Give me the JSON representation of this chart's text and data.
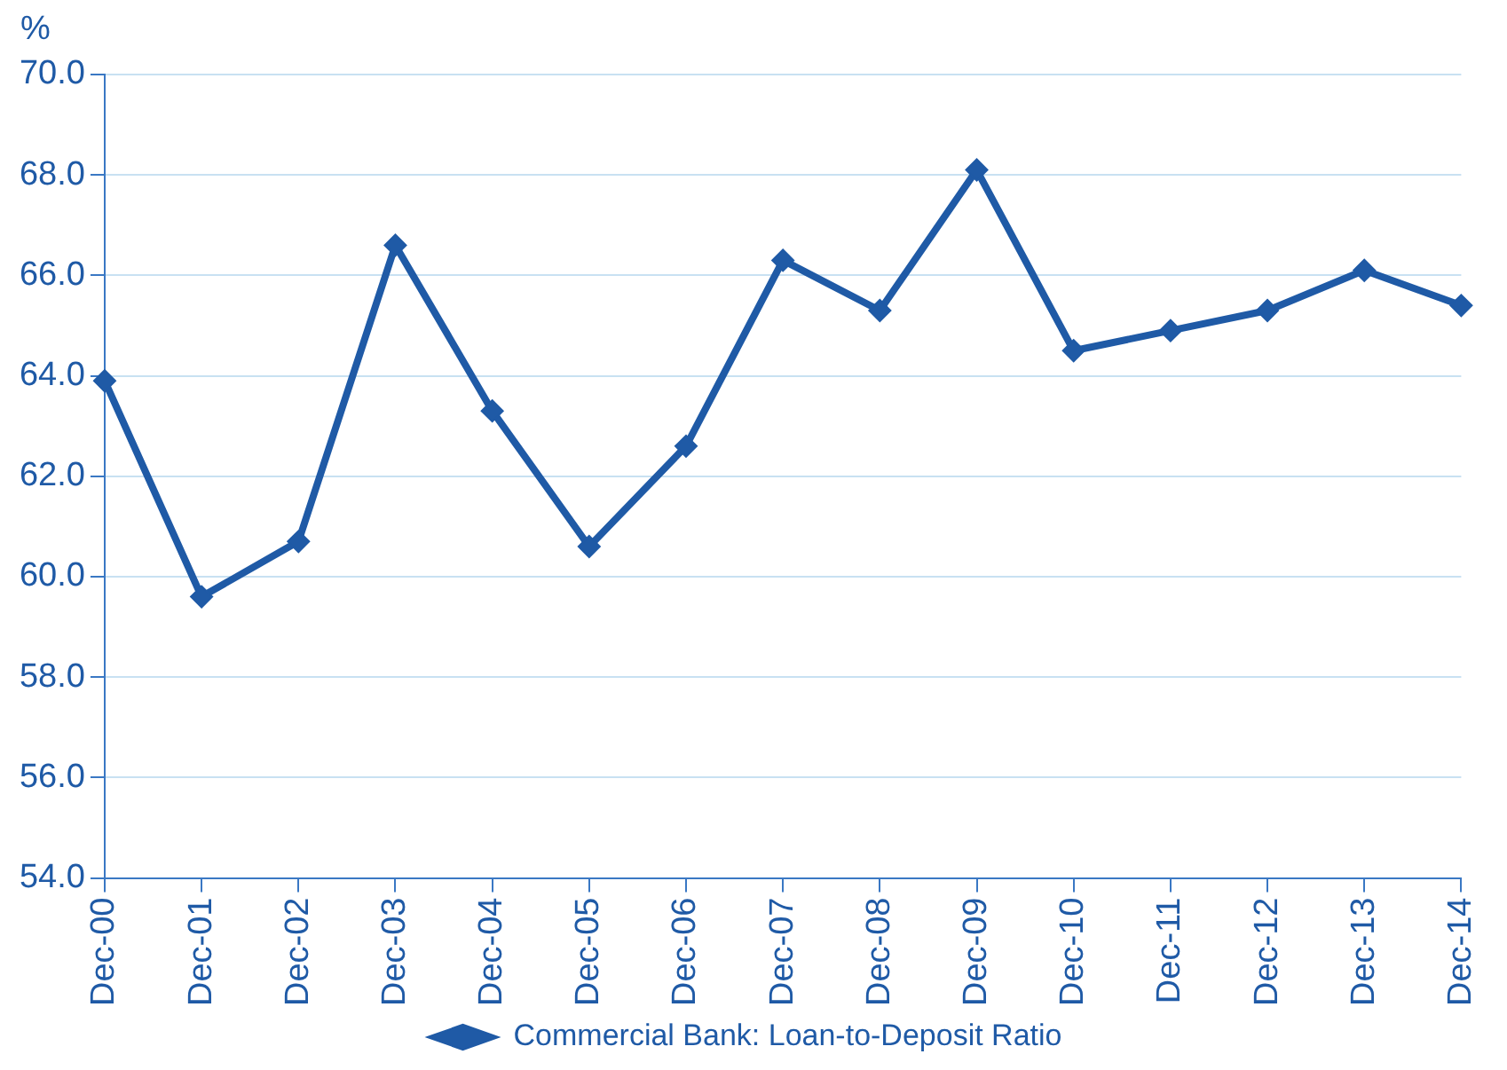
{
  "chart_data": {
    "type": "line",
    "ylabel": "%",
    "categories": [
      "Dec-00",
      "Dec-01",
      "Dec-02",
      "Dec-03",
      "Dec-04",
      "Dec-05",
      "Dec-06",
      "Dec-07",
      "Dec-08",
      "Dec-09",
      "Dec-10",
      "Dec-11",
      "Dec-12",
      "Dec-13",
      "Dec-14"
    ],
    "series": [
      {
        "name": "Commercial Bank: Loan-to-Deposit Ratio",
        "color": "#1f5aa6",
        "values": [
          63.9,
          59.6,
          60.7,
          66.6,
          63.3,
          60.6,
          62.6,
          66.3,
          65.3,
          68.1,
          64.5,
          64.9,
          65.3,
          66.1,
          65.4
        ]
      }
    ],
    "ylim": [
      54,
      70
    ],
    "yticks": [
      {
        "value": 54,
        "label": "54.0"
      },
      {
        "value": 56,
        "label": "56.0"
      },
      {
        "value": 58,
        "label": "58.0"
      },
      {
        "value": 60,
        "label": "60.0"
      },
      {
        "value": 62,
        "label": "62.0"
      },
      {
        "value": 64,
        "label": "64.0"
      },
      {
        "value": 66,
        "label": "66.0"
      },
      {
        "value": 68,
        "label": "68.0"
      },
      {
        "value": 70,
        "label": "70.0"
      }
    ],
    "grid": "y",
    "legend": "bottom",
    "marker": "diamond",
    "line_style": "solid"
  }
}
